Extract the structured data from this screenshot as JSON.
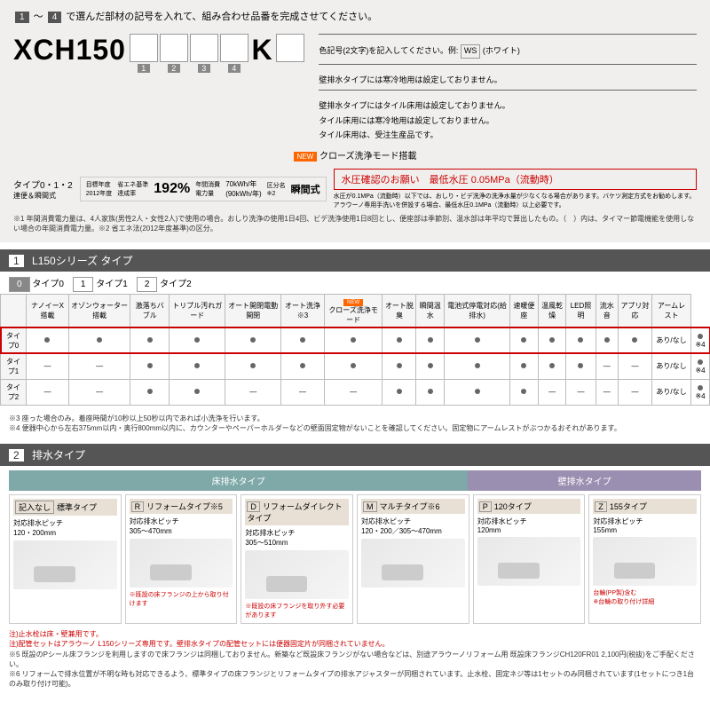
{
  "instruction": {
    "prefix": "1",
    "suffix": "4",
    "text": "で選んだ部材の記号を入れて、組み合わせ品番を完成させてください。"
  },
  "model": {
    "prefix": "XCH150",
    "boxes": [
      "1",
      "2",
      "3",
      "4"
    ],
    "suffix": "K"
  },
  "rightNotes": {
    "colorNote": "色記号(2文字)を記入してください。例:",
    "wsBox": "WS",
    "wsText": "(ホワイト)",
    "n1": "壁排水タイプには寒冷地用は設定しておりません。",
    "n2": "壁排水タイプにはタイル床用は設定しておりません。",
    "n3": "タイル床用には寒冷地用は設定しておりません。",
    "n4": "タイル床用は、受注生産品です。",
    "newLabel": "NEW",
    "closeMode": "クローズ洗浄モード搭載"
  },
  "spec": {
    "typeLabel": "タイプ0・1・2",
    "subLabel": "連便＆瞬間式",
    "year": "目標年度\n2012年度",
    "rate": "省エネ基準\n達成率",
    "pct": "192%",
    "annual": "年間消費\n電力量",
    "kwh1": "70kWh/年",
    "kwh2": "(90kWh/年)",
    "zone": "区分名\n※2",
    "instant": "瞬間式",
    "redBox": "水圧確認のお願い　最低水圧 0.05MPa（流動時）",
    "redNote": "水圧が0.1MPa（流動時）以下では、おしり・ビデ洗浄の洗浄水量が少なくなる場合があります。バケツ測定方式をお勧めします。アラウーノ専用手洗いを併設する場合、最低水圧0.1MPa（流動時）以上必要です。"
  },
  "finePrint": "※1 年間消費電力量は、4人家族(男性2人・女性2人)で使用の場合。おしり洗浄の使用1日4回、ビデ洗浄使用1日8回とし、便座部は季節別、温水部は年平均で算出したもの。（　）内は、タイマー節電機能を使用しない場合の年間消費電力量。※2 省エネ法(2012年度基準)の区分。",
  "section1": {
    "title": "L150シリーズ タイプ",
    "num": "1",
    "tabs": [
      {
        "code": "0",
        "label": "タイプ0"
      },
      {
        "code": "1",
        "label": "タイプ1"
      },
      {
        "code": "2",
        "label": "タイプ2"
      }
    ],
    "headers": [
      "",
      "ナノイーX搭載",
      "オゾンウォーター搭載",
      "激落ちバブル",
      "トリプル汚れガード",
      "オート開閉電動開閉",
      "オート洗浄※3",
      "クローズ洗浄モード",
      "オート脱臭",
      "瞬間温水",
      "電池式停電対応(給排水)",
      "速暖便座",
      "温風乾燥",
      "LED照明",
      "流水音",
      "アプリ対応",
      "アームレスト"
    ],
    "rows": [
      {
        "label": "タイプ0",
        "cells": [
          "●",
          "●",
          "●",
          "●",
          "●",
          "●",
          "●",
          "●",
          "●",
          "●",
          "●",
          "●",
          "●",
          "●",
          "●",
          "あり/なし",
          "●※4"
        ],
        "hl": true
      },
      {
        "label": "タイプ1",
        "cells": [
          "—",
          "—",
          "●",
          "●",
          "●",
          "●",
          "●",
          "●",
          "●",
          "●",
          "●",
          "●",
          "●",
          "—",
          "—",
          "あり/なし",
          "●※4"
        ]
      },
      {
        "label": "タイプ2",
        "cells": [
          "—",
          "—",
          "●",
          "●",
          "—",
          "—",
          "—",
          "●",
          "●",
          "●",
          "●",
          "—",
          "—",
          "—",
          "—",
          "あり/なし",
          "●※4"
        ]
      }
    ],
    "note3": "※3 座った場合のみ。着座時間が10秒以上50秒以内であれば小洗浄を行います。",
    "note4": "※4 便器中心から左右375mm以内・奥行800mm以内に、カウンターやペーパーホルダーなどの壁面固定物がないことを確認してください。固定物にアームレストがぶつかるおそれがあります。"
  },
  "section2": {
    "title": "排水タイプ",
    "num": "2",
    "floorLabel": "床排水タイプ",
    "wallLabel": "壁排水タイプ",
    "types": [
      {
        "code": "記入なし",
        "name": "標準タイプ",
        "pitch": "対応排水ピッチ\n120・200mm",
        "note": ""
      },
      {
        "code": "R",
        "name": "リフォームタイプ※5",
        "pitch": "対応排水ピッチ\n305〜470mm",
        "note": "※既設の床フランジの上から取り付けます"
      },
      {
        "code": "D",
        "name": "リフォームダイレクトタイプ",
        "pitch": "対応排水ピッチ\n305〜510mm",
        "note": "※既設の床フランジを取り外す必要があります"
      },
      {
        "code": "M",
        "name": "マルチタイプ※6",
        "pitch": "対応排水ピッチ\n120・200／305〜470mm",
        "note": ""
      },
      {
        "code": "P",
        "name": "120タイプ",
        "pitch": "対応排水ピッチ\n120mm",
        "note": ""
      },
      {
        "code": "Z",
        "name": "155タイプ",
        "pitch": "対応排水ピッチ\n155mm",
        "note": "台輪(PP製)含む\n※台輪の取り付け詳細"
      }
    ]
  },
  "bottomNotes": {
    "n1": "注)止水栓は床・壁兼用です。",
    "n2": "注)配管セットはアラウーノ L150シリーズ専用です。壁排水タイプの配管セットには便器固定片が同梱されていません。",
    "n3": "※5 既設のPシール床フランジを利用しますので床フランジは同梱しておりません。新築など既設床フランジがない場合などは、別途アラウーノリフォーム用 既設床フランジCH120FR01 2,100円(税抜)をご手配ください。",
    "n4": "※6 リフォームで排水位置が不明な時も対応できるよう、標準タイプの床フランジとリフォームタイプの排水アジャスターが同梱されています。止水栓、固定ネジ等は1セットのみ同梱されています(1セットにつき1台のみ取り付け可能)。"
  }
}
